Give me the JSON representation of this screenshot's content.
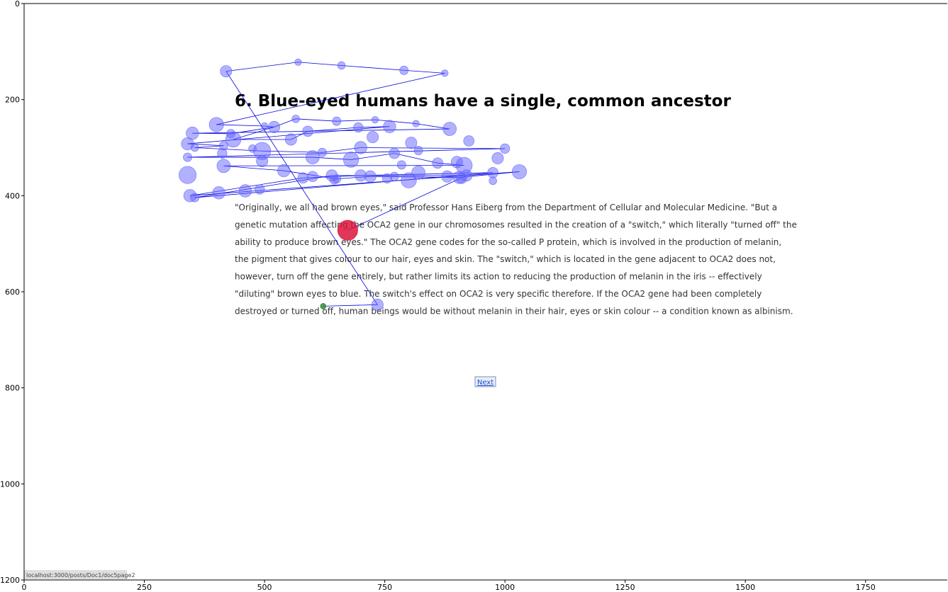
{
  "chart_data": {
    "type": "scatter",
    "title": "",
    "xlabel": "",
    "ylabel": "",
    "xlim": [
      0,
      1920
    ],
    "ylim": [
      1200,
      0
    ],
    "x_ticks": [
      "0",
      "250",
      "500",
      "750",
      "1000",
      "1250",
      "1500",
      "1750"
    ],
    "y_ticks": [
      "0",
      "200",
      "400",
      "600",
      "800",
      "1000",
      "1200"
    ],
    "grid": false,
    "colors": {
      "fixation": "#6464ff",
      "scanpath": "#0000dd",
      "first_fixation": "#2e8b3a",
      "last_fixation": "#dc143c"
    },
    "background_page": {
      "title": "6. Blue-eyed humans have a single, common ancestor",
      "paragraph_lines": [
        "\"Originally, we all had brown eyes,\" said Professor Hans Eiberg from the Department of Cellular and Molecular Medicine. \"But a",
        "genetic mutation affecting the OCA2 gene in our chromosomes resulted in the creation of a \"switch,\" which literally \"turned off\" the",
        "ability to produce brown eyes.\" The OCA2 gene codes for the so-called P protein, which is involved in the production of melanin,",
        "the pigment that gives colour to our hair, eyes and skin. The \"switch,\" which is located in the gene adjacent to OCA2 does not,",
        "however, turn off the gene entirely, but rather limits its action to reducing the production of melanin in the iris -- effectively",
        "\"diluting\" brown eyes to blue. The switch's effect on OCA2 is very specific therefore. If the OCA2 gene had been completely",
        "destroyed or turned off, human beings would be without melanin in their hair, eyes or skin colour -- a condition known as albinism."
      ],
      "next_link": "Next",
      "status_url": "localhost:3000/posts/Doc1/doc5page2"
    },
    "fixations": [
      {
        "x": 622,
        "y": 630,
        "r": 6
      },
      {
        "x": 735,
        "y": 627,
        "r": 12
      },
      {
        "x": 420,
        "y": 141,
        "r": 12
      },
      {
        "x": 570,
        "y": 122,
        "r": 7
      },
      {
        "x": 660,
        "y": 129,
        "r": 8
      },
      {
        "x": 790,
        "y": 139,
        "r": 9
      },
      {
        "x": 875,
        "y": 145,
        "r": 7
      },
      {
        "x": 400,
        "y": 252,
        "r": 15
      },
      {
        "x": 500,
        "y": 255,
        "r": 7
      },
      {
        "x": 520,
        "y": 257,
        "r": 12
      },
      {
        "x": 565,
        "y": 240,
        "r": 8
      },
      {
        "x": 650,
        "y": 245,
        "r": 9
      },
      {
        "x": 730,
        "y": 242,
        "r": 7
      },
      {
        "x": 815,
        "y": 250,
        "r": 7
      },
      {
        "x": 885,
        "y": 261,
        "r": 14
      },
      {
        "x": 350,
        "y": 270,
        "r": 13
      },
      {
        "x": 430,
        "y": 271,
        "r": 9
      },
      {
        "x": 435,
        "y": 283,
        "r": 16
      },
      {
        "x": 555,
        "y": 283,
        "r": 12
      },
      {
        "x": 590,
        "y": 266,
        "r": 11
      },
      {
        "x": 695,
        "y": 258,
        "r": 10
      },
      {
        "x": 760,
        "y": 256,
        "r": 13
      },
      {
        "x": 340,
        "y": 292,
        "r": 13
      },
      {
        "x": 355,
        "y": 300,
        "r": 8
      },
      {
        "x": 415,
        "y": 296,
        "r": 9
      },
      {
        "x": 412,
        "y": 312,
        "r": 10
      },
      {
        "x": 475,
        "y": 302,
        "r": 8
      },
      {
        "x": 495,
        "y": 307,
        "r": 18
      },
      {
        "x": 495,
        "y": 328,
        "r": 12
      },
      {
        "x": 600,
        "y": 320,
        "r": 14
      },
      {
        "x": 620,
        "y": 310,
        "r": 9
      },
      {
        "x": 680,
        "y": 325,
        "r": 16
      },
      {
        "x": 700,
        "y": 300,
        "r": 13
      },
      {
        "x": 725,
        "y": 278,
        "r": 12
      },
      {
        "x": 770,
        "y": 312,
        "r": 11
      },
      {
        "x": 805,
        "y": 290,
        "r": 12
      },
      {
        "x": 820,
        "y": 306,
        "r": 9
      },
      {
        "x": 860,
        "y": 332,
        "r": 11
      },
      {
        "x": 900,
        "y": 330,
        "r": 12
      },
      {
        "x": 915,
        "y": 337,
        "r": 17
      },
      {
        "x": 925,
        "y": 286,
        "r": 11
      },
      {
        "x": 985,
        "y": 322,
        "r": 12
      },
      {
        "x": 1000,
        "y": 302,
        "r": 10
      },
      {
        "x": 340,
        "y": 320,
        "r": 9
      },
      {
        "x": 415,
        "y": 338,
        "r": 14
      },
      {
        "x": 540,
        "y": 348,
        "r": 13
      },
      {
        "x": 580,
        "y": 363,
        "r": 11
      },
      {
        "x": 600,
        "y": 360,
        "r": 11
      },
      {
        "x": 640,
        "y": 358,
        "r": 12
      },
      {
        "x": 645,
        "y": 367,
        "r": 9
      },
      {
        "x": 650,
        "y": 365,
        "r": 9
      },
      {
        "x": 700,
        "y": 358,
        "r": 12
      },
      {
        "x": 720,
        "y": 360,
        "r": 12
      },
      {
        "x": 755,
        "y": 364,
        "r": 10
      },
      {
        "x": 770,
        "y": 360,
        "r": 9
      },
      {
        "x": 785,
        "y": 336,
        "r": 9
      },
      {
        "x": 800,
        "y": 368,
        "r": 16
      },
      {
        "x": 820,
        "y": 352,
        "r": 14
      },
      {
        "x": 880,
        "y": 360,
        "r": 12
      },
      {
        "x": 905,
        "y": 362,
        "r": 13
      },
      {
        "x": 910,
        "y": 364,
        "r": 11
      },
      {
        "x": 920,
        "y": 358,
        "r": 12
      },
      {
        "x": 975,
        "y": 352,
        "r": 11
      },
      {
        "x": 975,
        "y": 369,
        "r": 8
      },
      {
        "x": 1030,
        "y": 350,
        "r": 15
      },
      {
        "x": 340,
        "y": 357,
        "r": 18
      },
      {
        "x": 345,
        "y": 400,
        "r": 13
      },
      {
        "x": 355,
        "y": 404,
        "r": 9
      },
      {
        "x": 405,
        "y": 394,
        "r": 13
      },
      {
        "x": 460,
        "y": 390,
        "r": 13
      },
      {
        "x": 490,
        "y": 387,
        "r": 10
      },
      {
        "x": 673,
        "y": 472,
        "r": 21
      }
    ],
    "scanpath": [
      [
        622,
        630
      ],
      [
        735,
        627
      ],
      [
        420,
        141
      ],
      [
        570,
        122
      ],
      [
        660,
        129
      ],
      [
        790,
        139
      ],
      [
        875,
        145
      ],
      [
        400,
        252
      ],
      [
        500,
        255
      ],
      [
        520,
        257
      ],
      [
        565,
        240
      ],
      [
        650,
        245
      ],
      [
        730,
        242
      ],
      [
        815,
        250
      ],
      [
        885,
        261
      ],
      [
        350,
        270
      ],
      [
        430,
        271
      ],
      [
        520,
        257
      ],
      [
        435,
        283
      ],
      [
        555,
        283
      ],
      [
        590,
        266
      ],
      [
        695,
        258
      ],
      [
        760,
        256
      ],
      [
        340,
        292
      ],
      [
        415,
        296
      ],
      [
        355,
        300
      ],
      [
        495,
        307
      ],
      [
        620,
        310
      ],
      [
        700,
        300
      ],
      [
        1000,
        302
      ],
      [
        340,
        320
      ],
      [
        600,
        320
      ],
      [
        680,
        325
      ],
      [
        770,
        312
      ],
      [
        860,
        332
      ],
      [
        915,
        337
      ],
      [
        415,
        338
      ],
      [
        540,
        348
      ],
      [
        650,
        365
      ],
      [
        720,
        360
      ],
      [
        905,
        362
      ],
      [
        1030,
        350
      ],
      [
        345,
        400
      ],
      [
        580,
        363
      ],
      [
        700,
        358
      ],
      [
        975,
        352
      ],
      [
        355,
        404
      ],
      [
        640,
        358
      ],
      [
        920,
        358
      ],
      [
        673,
        472
      ]
    ]
  }
}
